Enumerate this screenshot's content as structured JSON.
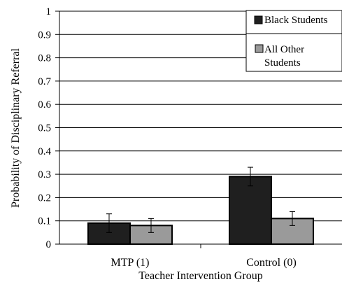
{
  "chart_data": {
    "type": "bar",
    "categories": [
      "MTP (1)",
      "Control (0)"
    ],
    "series": [
      {
        "name": "Black Students",
        "values": [
          0.09,
          0.29
        ],
        "error_upper": [
          0.13,
          0.33
        ],
        "error_lower": [
          0.05,
          0.25
        ],
        "color": "#1f1f1f"
      },
      {
        "name": "All Other Students",
        "values": [
          0.08,
          0.11
        ],
        "error_upper": [
          0.11,
          0.14
        ],
        "error_lower": [
          0.05,
          0.08
        ],
        "color": "#9a9a9a"
      }
    ],
    "xlabel": "Teacher Intervention Group",
    "ylabel": "Probability of Disciplinary Referral",
    "ylim": [
      0,
      1
    ],
    "yticks": [
      "0",
      "0.1",
      "0.2",
      "0.3",
      "0.4",
      "0.5",
      "0.6",
      "0.7",
      "0.8",
      "0.9",
      "1"
    ],
    "grid": true,
    "legend": {
      "position": "top-right",
      "entries": [
        {
          "label": "Black Students",
          "lines": [
            "Black Students"
          ]
        },
        {
          "label": "All Other Students",
          "lines": [
            "All Other",
            "Students"
          ]
        }
      ]
    }
  }
}
